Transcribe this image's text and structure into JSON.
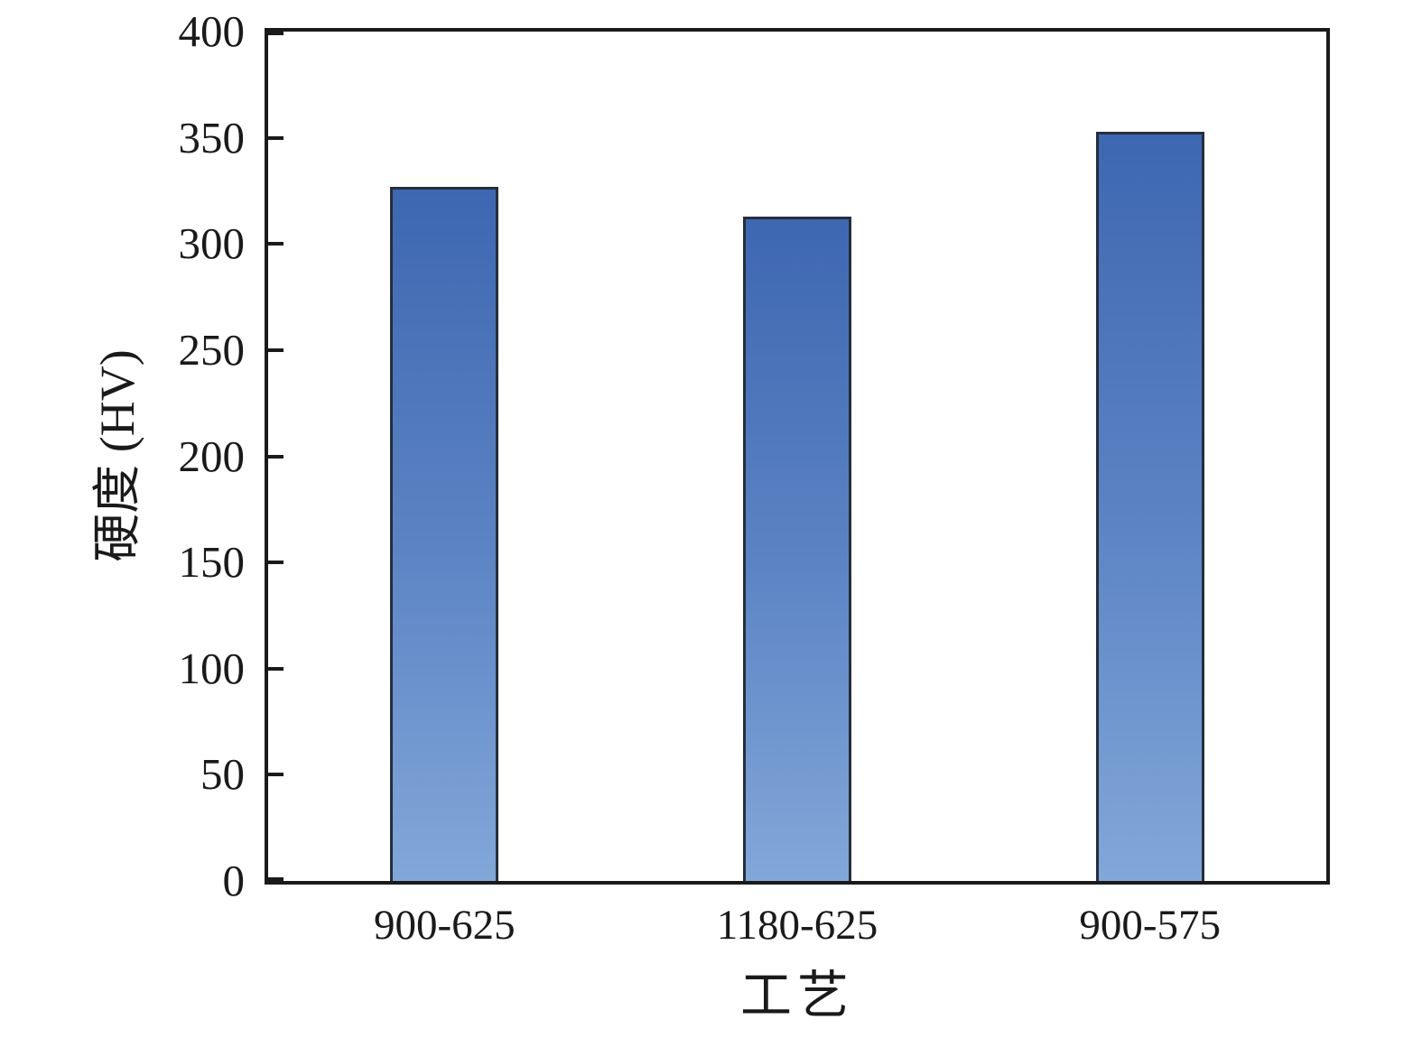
{
  "chart_data": {
    "type": "bar",
    "title": "",
    "xlabel": "工艺",
    "ylabel": "硬度 (HV)",
    "categories": [
      "900-625",
      "1180-625",
      "900-575"
    ],
    "values": [
      327,
      313,
      353
    ],
    "ylim": [
      0,
      400
    ],
    "yticks": [
      0,
      50,
      100,
      150,
      200,
      250,
      300,
      350,
      400
    ],
    "grid": false,
    "legend": "none",
    "colors": {
      "bar_gradient_top": "#3d67b1",
      "bar_gradient_mid": "#5c84c4",
      "bar_gradient_bottom": "#82a7d9",
      "bar_border": "#262e3c",
      "axis": "#1a1a1a",
      "background": "#ffffff"
    }
  }
}
